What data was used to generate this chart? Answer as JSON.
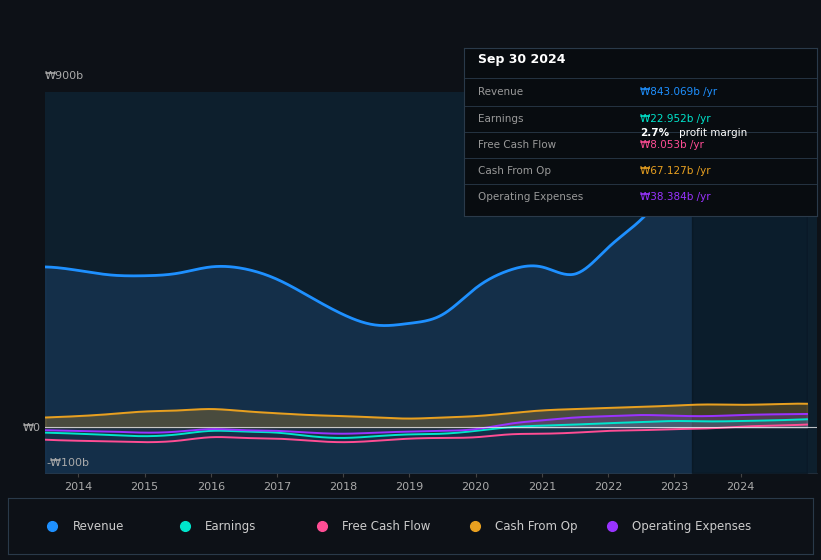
{
  "bg_color": "#0d1117",
  "plot_bg_color": "#0d1f2d",
  "legend": [
    {
      "label": "Revenue",
      "color": "#1e90ff"
    },
    {
      "label": "Earnings",
      "color": "#00e5cc"
    },
    {
      "label": "Free Cash Flow",
      "color": "#ff4d94"
    },
    {
      "label": "Cash From Op",
      "color": "#e8a020"
    },
    {
      "label": "Operating Expenses",
      "color": "#9933ff"
    }
  ],
  "info_box": {
    "date": "Sep 30 2024",
    "revenue_val": "₩843.069b",
    "revenue_color": "#1e90ff",
    "earnings_val": "₩22.952b",
    "earnings_color": "#00e5cc",
    "fcf_val": "₩8.053b",
    "fcf_color": "#ff4d94",
    "cash_op_val": "₩67.127b",
    "cash_op_color": "#e8a020",
    "op_exp_val": "₩38.384b",
    "op_exp_color": "#9933ff"
  }
}
